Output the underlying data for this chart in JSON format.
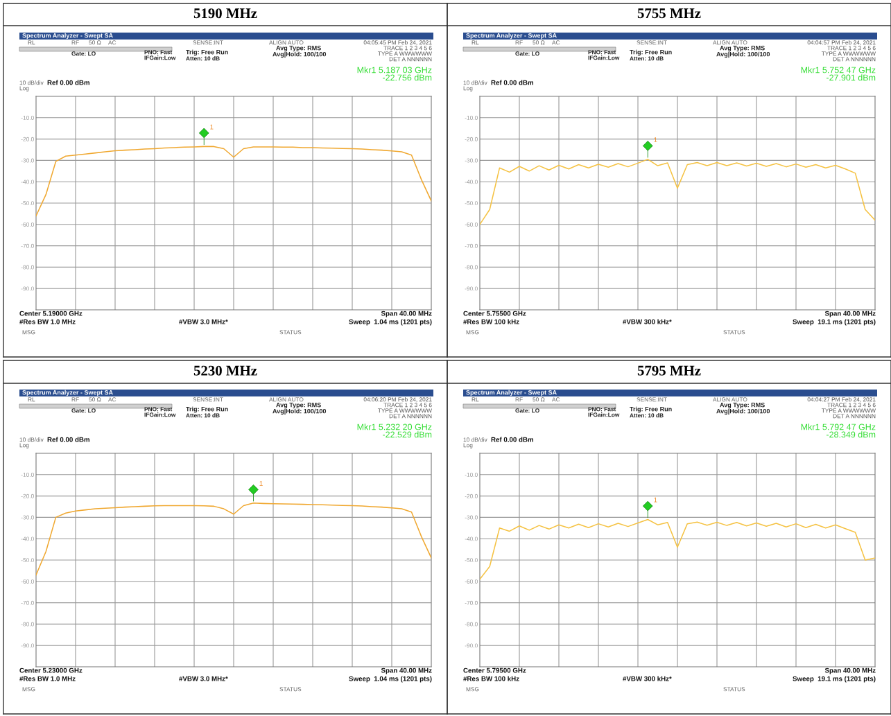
{
  "chart_data": [
    {
      "type": "line",
      "title": "5190 MHz",
      "categories": [
        null,
        null,
        null,
        null,
        null,
        null,
        null,
        null,
        null,
        null,
        null,
        null,
        null,
        null,
        null,
        null,
        null,
        null,
        null,
        null,
        null,
        null,
        null,
        null,
        null,
        null,
        null,
        null,
        null,
        null,
        null,
        null,
        null,
        null,
        null,
        null,
        null,
        null,
        null,
        null,
        null
      ],
      "ylim": [
        -100,
        0
      ],
      "yticks": [
        {
          "value": -10,
          "label": "-10.0"
        },
        {
          "value": -20,
          "label": "-20.0"
        },
        {
          "value": -30,
          "label": "-30.0"
        },
        {
          "value": -40,
          "label": "-40.0"
        },
        {
          "value": -50,
          "label": "-50.0"
        },
        {
          "value": -60,
          "label": "-60.0"
        },
        {
          "value": -70,
          "label": "-70.0"
        },
        {
          "value": -80,
          "label": "-80.0"
        },
        {
          "value": -90,
          "label": "-90.0"
        }
      ],
      "grid": true,
      "tick_labels": "y",
      "series": [
        {
          "color": "#f0a830",
          "values": [
            -56,
            -46,
            -30.5,
            -28,
            -27.5,
            -27,
            -26.5,
            -26,
            -25.5,
            -25.2,
            -25,
            -24.7,
            -24.5,
            -24.2,
            -24,
            -23.8,
            -23.7,
            -23.5,
            -23.5,
            -24.5,
            -28.5,
            -24.5,
            -23.7,
            -23.7,
            -23.7,
            -23.8,
            -23.8,
            -24,
            -24,
            -24.2,
            -24.3,
            -24.4,
            -24.5,
            -24.7,
            -25,
            -25.2,
            -25.6,
            -26,
            -27.5,
            -39,
            -49
          ]
        }
      ],
      "annotations": [
        "Spectrum Analyzer - Swept SA",
        "RL",
        "RF",
        "50 Ω",
        "AC",
        "SENSE:INT",
        "ALIGN AUTO",
        "04:05:45 PM Feb 24, 2021",
        "Gate: LO",
        "PNO: Fast",
        "IFGain:Low",
        "Trig: Free Run",
        "Atten: 10 dB",
        "Avg Type: RMS",
        "Avg|Hold: 100/100",
        "TRACE 1 2 3 4 5 6",
        "TYPE A WWWWWW",
        "DET A NNNNNN",
        "Mkr1 5.187 03 GHz",
        "-22.756 dBm",
        "10 dB/div",
        "Log",
        "Ref 0.00 dBm",
        "Center 5.19000 GHz",
        "#Res BW 1.0 MHz",
        "#VBW 3.0 MHz*",
        "Span 40.00 MHz",
        "Sweep  1.04 ms (1201 pts)",
        "MSG",
        "STATUS",
        "1"
      ]
    },
    {
      "type": "line",
      "title": "5755 MHz",
      "categories": [
        null,
        null,
        null,
        null,
        null,
        null,
        null,
        null,
        null,
        null,
        null,
        null,
        null,
        null,
        null,
        null,
        null,
        null,
        null,
        null,
        null,
        null,
        null,
        null,
        null,
        null,
        null,
        null,
        null,
        null,
        null,
        null,
        null,
        null,
        null,
        null,
        null,
        null,
        null,
        null,
        null
      ],
      "ylim": [
        -100,
        0
      ],
      "yticks": [
        {
          "value": -10,
          "label": "-10.0"
        },
        {
          "value": -20,
          "label": "-20.0"
        },
        {
          "value": -30,
          "label": "-30.0"
        },
        {
          "value": -40,
          "label": "-40.0"
        },
        {
          "value": -50,
          "label": "-50.0"
        },
        {
          "value": -60,
          "label": "-60.0"
        },
        {
          "value": -70,
          "label": "-70.0"
        },
        {
          "value": -80,
          "label": "-80.0"
        },
        {
          "value": -90,
          "label": "-90.0"
        }
      ],
      "grid": true,
      "tick_labels": "y",
      "series": [
        {
          "color": "#f5c242",
          "values": [
            -60,
            -53,
            -33.5,
            -35.5,
            -32.8,
            -35,
            -32.5,
            -34.5,
            -32.3,
            -34,
            -32,
            -33.5,
            -31.8,
            -33.2,
            -31.5,
            -33,
            -31.3,
            -29.5,
            -32.5,
            -31.2,
            -43,
            -32,
            -31,
            -32.5,
            -31,
            -32.5,
            -31.2,
            -32.6,
            -31.3,
            -32.8,
            -31.5,
            -33,
            -31.7,
            -33.2,
            -32,
            -33.5,
            -32.3,
            -34,
            -36,
            -53,
            -58
          ]
        }
      ],
      "annotations": [
        "Spectrum Analyzer - Swept SA",
        "RL",
        "RF",
        "50 Ω",
        "AC",
        "SENSE:INT",
        "ALIGN AUTO",
        "04:04:57 PM Feb 24, 2021",
        "Gate: LO",
        "PNO: Fast",
        "IFGain:Low",
        "Trig: Free Run",
        "Atten: 10 dB",
        "Avg Type: RMS",
        "Avg|Hold: 100/100",
        "TRACE 1 2 3 4 5 6",
        "TYPE A WWWWWW",
        "DET A NNNNNN",
        "Mkr1 5.752 47 GHz",
        "-27.901 dBm",
        "10 dB/div",
        "Log",
        "Ref 0.00 dBm",
        "Center 5.75500 GHz",
        "#Res BW 100 kHz",
        "#VBW 300 kHz*",
        "Span 40.00 MHz",
        "Sweep  19.1 ms (1201 pts)",
        "MSG",
        "STATUS",
        "1"
      ]
    },
    {
      "type": "line",
      "title": "5230 MHz",
      "categories": [
        null,
        null,
        null,
        null,
        null,
        null,
        null,
        null,
        null,
        null,
        null,
        null,
        null,
        null,
        null,
        null,
        null,
        null,
        null,
        null,
        null,
        null,
        null,
        null,
        null,
        null,
        null,
        null,
        null,
        null,
        null,
        null,
        null,
        null,
        null,
        null,
        null,
        null,
        null,
        null,
        null
      ],
      "ylim": [
        -100,
        0
      ],
      "yticks": [
        {
          "value": -10,
          "label": "-10.0"
        },
        {
          "value": -20,
          "label": "-20.0"
        },
        {
          "value": -30,
          "label": "-30.0"
        },
        {
          "value": -40,
          "label": "-40.0"
        },
        {
          "value": -50,
          "label": "-50.0"
        },
        {
          "value": -60,
          "label": "-60.0"
        },
        {
          "value": -70,
          "label": "-70.0"
        },
        {
          "value": -80,
          "label": "-80.0"
        },
        {
          "value": -90,
          "label": "-90.0"
        }
      ],
      "grid": true,
      "tick_labels": "y",
      "series": [
        {
          "color": "#f0a830",
          "values": [
            -57,
            -46,
            -30,
            -28,
            -27,
            -26.5,
            -26,
            -25.7,
            -25.5,
            -25.2,
            -25,
            -24.8,
            -24.6,
            -24.5,
            -24.5,
            -24.5,
            -24.5,
            -24.6,
            -24.8,
            -26,
            -28.5,
            -24.5,
            -23.3,
            -23.5,
            -23.6,
            -23.7,
            -23.8,
            -23.9,
            -24,
            -24.1,
            -24.3,
            -24.4,
            -24.5,
            -24.7,
            -25,
            -25.2,
            -25.6,
            -26,
            -27.5,
            -39,
            -49
          ]
        }
      ],
      "annotations": [
        "Spectrum Analyzer - Swept SA",
        "RL",
        "RF",
        "50 Ω",
        "AC",
        "SENSE:INT",
        "ALIGN AUTO",
        "04:06:20 PM Feb 24, 2021",
        "Gate: LO",
        "PNO: Fast",
        "IFGain:Low",
        "Trig: Free Run",
        "Atten: 10 dB",
        "Avg Type: RMS",
        "Avg|Hold: 100/100",
        "TRACE 1 2 3 4 5 6",
        "TYPE A WWWWWW",
        "DET A NNNNNN",
        "Mkr1 5.232 20 GHz",
        "-22.529 dBm",
        "10 dB/div",
        "Log",
        "Ref 0.00 dBm",
        "Center 5.23000 GHz",
        "#Res BW 1.0 MHz",
        "#VBW 3.0 MHz*",
        "Span 40.00 MHz",
        "Sweep  1.04 ms (1201 pts)",
        "MSG",
        "STATUS",
        "1"
      ]
    },
    {
      "type": "line",
      "title": "5795 MHz",
      "categories": [
        null,
        null,
        null,
        null,
        null,
        null,
        null,
        null,
        null,
        null,
        null,
        null,
        null,
        null,
        null,
        null,
        null,
        null,
        null,
        null,
        null,
        null,
        null,
        null,
        null,
        null,
        null,
        null,
        null,
        null,
        null,
        null,
        null,
        null,
        null,
        null,
        null,
        null,
        null,
        null,
        null
      ],
      "ylim": [
        -100,
        0
      ],
      "yticks": [
        {
          "value": -10,
          "label": "-10.0"
        },
        {
          "value": -20,
          "label": "-20.0"
        },
        {
          "value": -30,
          "label": "-30.0"
        },
        {
          "value": -40,
          "label": "-40.0"
        },
        {
          "value": -50,
          "label": "-50.0"
        },
        {
          "value": -60,
          "label": "-60.0"
        },
        {
          "value": -70,
          "label": "-70.0"
        },
        {
          "value": -80,
          "label": "-80.0"
        },
        {
          "value": -90,
          "label": "-90.0"
        }
      ],
      "grid": true,
      "tick_labels": "y",
      "series": [
        {
          "color": "#f5c242",
          "values": [
            -59,
            -53,
            -35,
            -36.5,
            -34,
            -36,
            -33.8,
            -35.5,
            -33.5,
            -35,
            -33.2,
            -34.8,
            -33,
            -34.5,
            -32.8,
            -34.3,
            -32.6,
            -31,
            -33.5,
            -32.4,
            -44,
            -33,
            -32.2,
            -33.7,
            -32.3,
            -33.8,
            -32.4,
            -34,
            -32.6,
            -34.2,
            -32.8,
            -34.5,
            -33,
            -34.8,
            -33.3,
            -35,
            -33.5,
            -35.3,
            -37,
            -50,
            -49
          ]
        }
      ],
      "annotations": [
        "Spectrum Analyzer - Swept SA",
        "RL",
        "RF",
        "50 Ω",
        "AC",
        "SENSE:INT",
        "ALIGN AUTO",
        "04:04:27 PM Feb 24, 2021",
        "Gate: LO",
        "PNO: Fast",
        "IFGain:Low",
        "Trig: Free Run",
        "Atten: 10 dB",
        "Avg Type: RMS",
        "Avg|Hold: 100/100",
        "TRACE 1 2 3 4 5 6",
        "TYPE A WWWWWW",
        "DET A NNNNNN",
        "Mkr1 5.792 47 GHz",
        "-28.349 dBm",
        "10 dB/div",
        "Log",
        "Ref 0.00 dBm",
        "Center 5.79500 GHz",
        "#Res BW 100 kHz",
        "#VBW 300 kHz*",
        "Span 40.00 MHz",
        "Sweep  19.1 ms (1201 pts)",
        "MSG",
        "STATUS",
        "1"
      ]
    }
  ]
}
